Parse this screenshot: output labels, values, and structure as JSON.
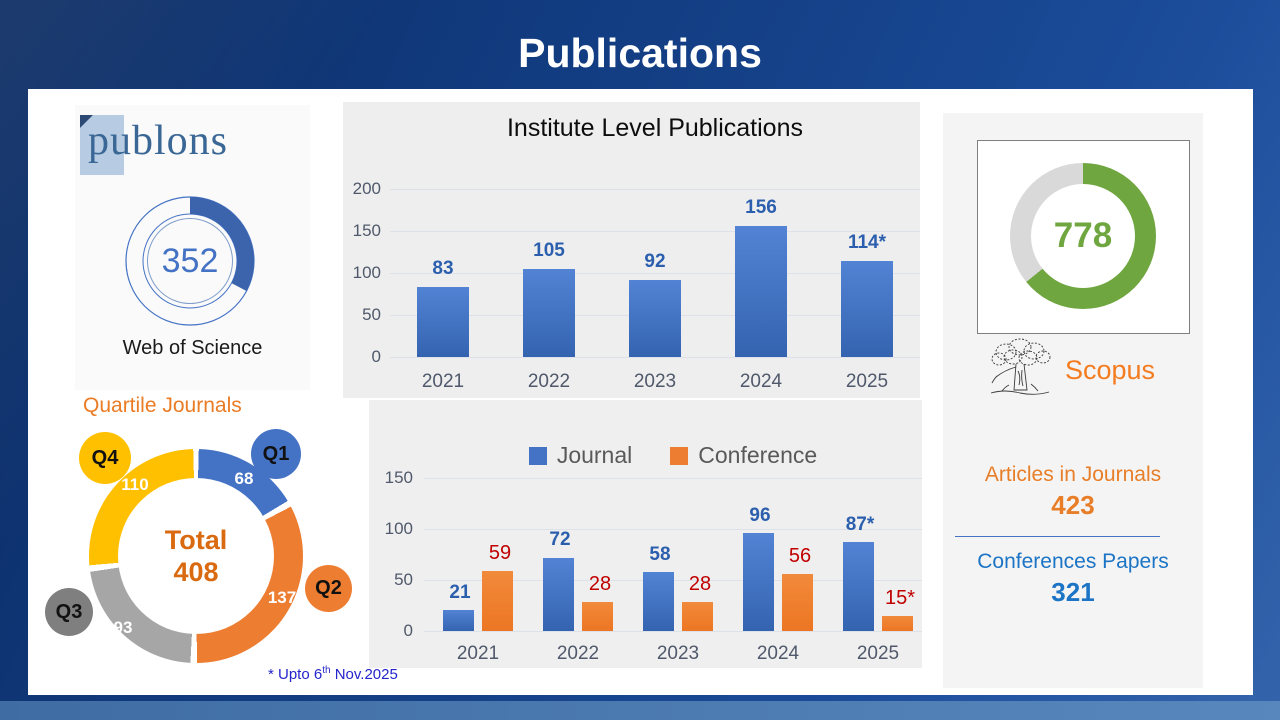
{
  "slide": {
    "title": "Publications",
    "footnote": {
      "prefix": "* Upto 6",
      "sup": "th",
      "suffix": " Nov.2025"
    }
  },
  "publons": {
    "logo_text": "publons",
    "caption": "Web of Science"
  },
  "scopus": {
    "brand": "Scopus",
    "articles_label": "Articles in Journals",
    "articles_value": "423",
    "conferences_label": "Conferences Papers",
    "conferences_value": "321"
  },
  "chart_data": [
    {
      "id": "institute-level-publications",
      "type": "bar",
      "title": "Institute Level Publications",
      "categories": [
        "2021",
        "2022",
        "2023",
        "2024",
        "2025"
      ],
      "values": [
        83,
        105,
        92,
        156,
        114
      ],
      "value_labels": [
        "83",
        "105",
        "92",
        "156",
        "114*"
      ],
      "yticks": [
        "200",
        "150",
        "100",
        "50",
        "0"
      ],
      "ylim": [
        0,
        200
      ],
      "grid": true,
      "bar_color": "#4472c4",
      "label_color": "#2b5fae"
    },
    {
      "id": "journal-vs-conference",
      "type": "bar",
      "categories": [
        "2021",
        "2022",
        "2023",
        "2024",
        "2025"
      ],
      "series": [
        {
          "name": "Journal",
          "color": "#4472c4",
          "values": [
            21,
            72,
            58,
            96,
            87
          ],
          "value_labels": [
            "21",
            "72",
            "58",
            "96",
            "87*"
          ],
          "label_color": "#2b5fae"
        },
        {
          "name": "Conference",
          "color": "#ed7d31",
          "values": [
            59,
            28,
            28,
            56,
            15
          ],
          "value_labels": [
            "59",
            "28",
            "28",
            "56",
            "15*"
          ],
          "label_color": "#c00000"
        }
      ],
      "yticks": [
        "150",
        "100",
        "50",
        "0"
      ],
      "ylim": [
        0,
        150
      ],
      "grid": true,
      "legend_position": "top"
    },
    {
      "id": "web-of-science-donut",
      "type": "donut",
      "label": "Web of Science",
      "value": 352,
      "ring_color": "#3b64ad"
    },
    {
      "id": "scopus-donut",
      "type": "donut",
      "label": "Scopus",
      "value": 778,
      "ring_color": "#6fa63f",
      "track_color": "#d9d9d9"
    },
    {
      "id": "quartile-journals-donut",
      "type": "donut",
      "title": "Quartile Journals",
      "center_label": "Total",
      "total": 408,
      "segments": [
        {
          "label": "Q1",
          "value": 68,
          "color": "#4472c4"
        },
        {
          "label": "Q2",
          "value": 137,
          "color": "#ed7d31"
        },
        {
          "label": "Q3",
          "value": 93,
          "color": "#a6a6a6"
        },
        {
          "label": "Q4",
          "value": 110,
          "color": "#ffc000"
        }
      ]
    }
  ]
}
